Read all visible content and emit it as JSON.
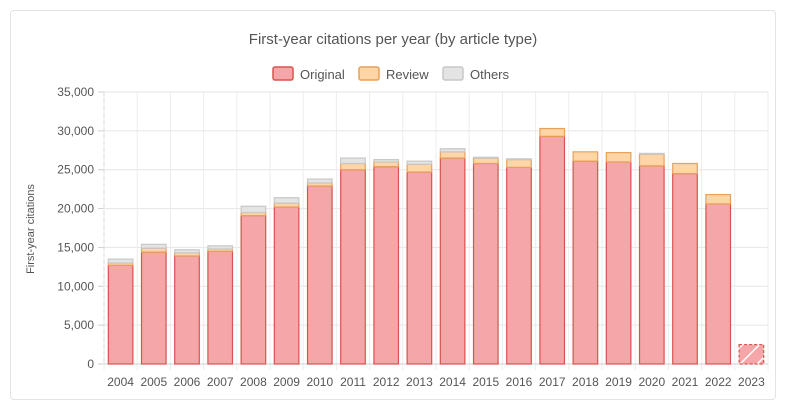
{
  "chart_data": {
    "type": "bar",
    "stacked": true,
    "title": "First-year citations per year (by article type)",
    "xlabel": "",
    "ylabel": "First-year citations",
    "ylim": [
      0,
      35000
    ],
    "ytick_step": 5000,
    "ytick_labels": [
      "0",
      "5,000",
      "10,000",
      "15,000",
      "20,000",
      "25,000",
      "30,000",
      "35,000"
    ],
    "categories": [
      "2004",
      "2005",
      "2006",
      "2007",
      "2008",
      "2009",
      "2010",
      "2011",
      "2012",
      "2013",
      "2014",
      "2015",
      "2016",
      "2017",
      "2018",
      "2019",
      "2020",
      "2021",
      "2022",
      "2023"
    ],
    "legend_position": "top-center",
    "series": [
      {
        "name": "Original",
        "fill": "#f4a6a8",
        "stroke": "#d9534f",
        "values": [
          12700,
          14400,
          13900,
          14500,
          19100,
          20200,
          22900,
          25000,
          25400,
          24700,
          26500,
          25800,
          25300,
          29300,
          26100,
          26000,
          25500,
          24500,
          20600,
          2500
        ]
      },
      {
        "name": "Review",
        "fill": "#fdd5a6",
        "stroke": "#e8a15a",
        "values": [
          300,
          500,
          400,
          300,
          400,
          500,
          400,
          800,
          600,
          1000,
          800,
          700,
          1000,
          1000,
          1200,
          1200,
          1500,
          1300,
          1200,
          0
        ]
      },
      {
        "name": "Others",
        "fill": "#e4e4e4",
        "stroke": "#c8c8c8",
        "values": [
          500,
          500,
          400,
          400,
          800,
          700,
          500,
          700,
          300,
          400,
          400,
          100,
          100,
          0,
          0,
          0,
          100,
          0,
          0,
          0
        ]
      }
    ],
    "partial_category": "2023"
  }
}
